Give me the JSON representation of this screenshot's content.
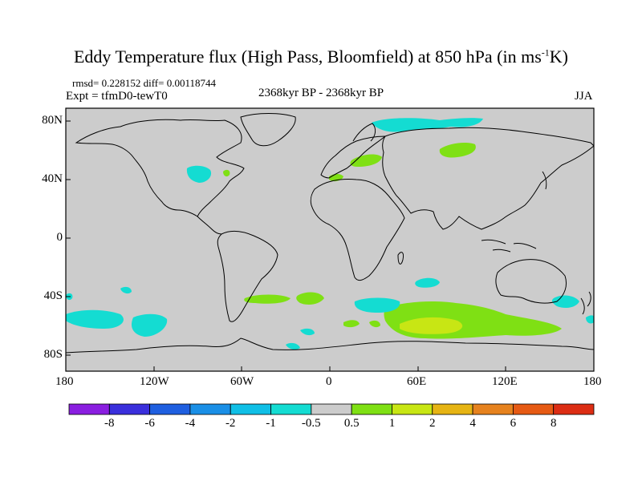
{
  "title": {
    "main": "Eddy Temperature flux (High Pass, Bloomfield) at 850 hPa (in ms",
    "sup": "-1",
    "end": "K)"
  },
  "stats": {
    "rmsd": "rmsd= 0.228152 diff= 0.00118744"
  },
  "experiment": "Expt = tfmD0-tewT0",
  "period": "2368kyr BP - 2368kyr BP",
  "season": "JJA",
  "axes": {
    "lat_labels": [
      "80N",
      "40N",
      "0",
      "40S",
      "80S"
    ],
    "lon_labels": [
      "180",
      "120W",
      "60W",
      "0",
      "60E",
      "120E",
      "180"
    ]
  },
  "colorbar": {
    "labels": [
      "-8",
      "-6",
      "-4",
      "-2",
      "-1",
      "-0.5",
      "0.5",
      "1",
      "2",
      "4",
      "6",
      "8"
    ],
    "colors": [
      "#8a1ee0",
      "#3a2fdc",
      "#1f5fe0",
      "#1a8fe6",
      "#10bfe6",
      "#14dcd2",
      "#cccccc",
      "#7fe014",
      "#c8e614",
      "#e6b414",
      "#e6821e",
      "#e65a14",
      "#dc2d14"
    ]
  },
  "colors": {
    "land_sea_bg": "#cccccc",
    "positive_low": "#7fe014",
    "positive_mid": "#c8e614",
    "negative_low": "#14dcd2",
    "coast": "#000000"
  }
}
